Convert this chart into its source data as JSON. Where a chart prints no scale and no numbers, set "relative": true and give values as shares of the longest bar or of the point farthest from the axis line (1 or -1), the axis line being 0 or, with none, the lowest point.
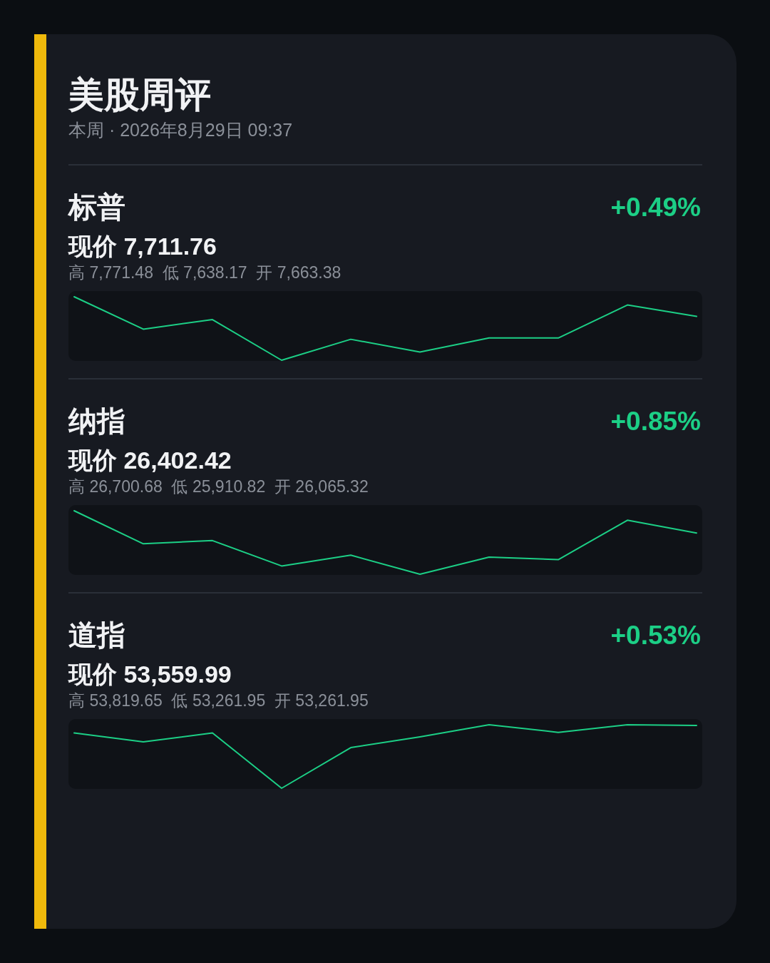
{
  "chart_data": [
    {
      "type": "other",
      "title": "美股周评",
      "subtitle": "本周 · 2026年8月29日 09:37"
    },
    {
      "type": "other",
      "title": "标普",
      "subtitle": "现价 7,711.76",
      "annotations": [
        "+0.49%",
        "高 7,771.48  低 7,638.17  开 7,663.38"
      ]
    },
    {
      "type": "line",
      "relative": true,
      "categories": [
        null,
        null,
        null,
        null,
        null,
        null,
        null,
        null,
        null,
        null
      ],
      "color": "#1ccf86",
      "values": [
        1,
        0.49,
        0.64,
        0,
        0.33,
        0.13,
        0.35,
        0.35,
        0.87,
        0.69
      ]
    },
    {
      "type": "other",
      "title": "纳指",
      "subtitle": "现价 26,402.42",
      "annotations": [
        "+0.85%",
        "高 26,700.68  低 25,910.82  开 26,065.32"
      ]
    },
    {
      "type": "line",
      "relative": true,
      "categories": [
        null,
        null,
        null,
        null,
        null,
        null,
        null,
        null,
        null,
        null
      ],
      "color": "#1ccf86",
      "values": [
        1,
        0.48,
        0.53,
        0.13,
        0.3,
        0,
        0.27,
        0.23,
        0.85,
        0.65
      ]
    },
    {
      "type": "other",
      "title": "道指",
      "subtitle": "现价 53,559.99",
      "annotations": [
        "+0.53%",
        "高 53,819.65  低 53,261.95  开 53,261.95"
      ]
    },
    {
      "type": "line",
      "relative": true,
      "categories": [
        null,
        null,
        null,
        null,
        null,
        null,
        null,
        null,
        null,
        null
      ],
      "color": "#1ccf86",
      "values": [
        0.87,
        0.73,
        0.87,
        0,
        0.64,
        0.81,
        1,
        0.88,
        1,
        0.99
      ]
    }
  ]
}
